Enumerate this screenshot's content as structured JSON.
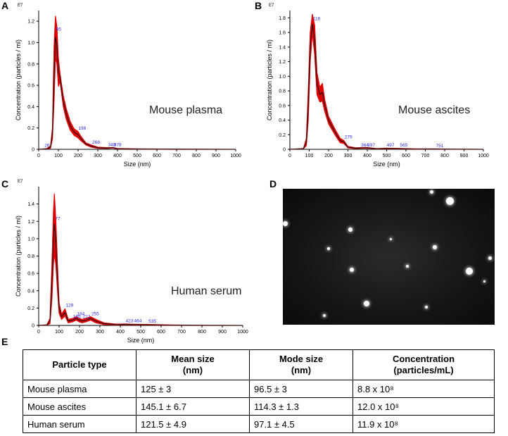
{
  "panels": [
    {
      "letter": "A"
    },
    {
      "letter": "B"
    },
    {
      "letter": "C"
    },
    {
      "letter": "D"
    },
    {
      "letter": "E"
    }
  ],
  "chart_data": [
    {
      "type": "line",
      "panel": "A",
      "sample_label": "Mouse plasma",
      "xlabel": "Size (nm)",
      "ylabel": "Concentration (particles / ml)",
      "y_exponent_label": "E7",
      "xlim": [
        0,
        1000
      ],
      "ylim": [
        0,
        1.3
      ],
      "x_ticks": [
        0,
        100,
        200,
        300,
        400,
        500,
        600,
        700,
        800,
        900,
        1000
      ],
      "y_ticks": [
        0,
        0.2,
        0.4,
        0.6,
        0.8,
        1.0,
        1.2
      ],
      "y_tick_labels": [
        "0",
        "0.2",
        "0.4",
        "0.6",
        "0.8",
        "1.0",
        "1.2"
      ],
      "series": [
        {
          "name": "mean",
          "x": [
            0,
            40,
            60,
            70,
            78,
            85,
            92,
            100,
            108,
            115,
            125,
            140,
            160,
            180,
            198,
            215,
            240,
            268,
            300,
            348,
            378,
            400,
            500,
            700,
            1000
          ],
          "values": [
            0,
            0.005,
            0.02,
            0.15,
            0.7,
            1.05,
            0.98,
            0.72,
            0.68,
            0.58,
            0.45,
            0.33,
            0.22,
            0.16,
            0.14,
            0.1,
            0.05,
            0.03,
            0.015,
            0.012,
            0.015,
            0.005,
            0.003,
            0.001,
            0
          ]
        },
        {
          "name": "upper",
          "x": [
            0,
            40,
            60,
            70,
            78,
            85,
            92,
            100,
            108,
            115,
            125,
            140,
            160,
            180,
            198,
            215,
            240,
            268,
            300,
            348,
            378,
            400,
            500,
            700,
            1000
          ],
          "values": [
            0,
            0.006,
            0.03,
            0.2,
            0.95,
            1.25,
            1.15,
            0.85,
            0.72,
            0.62,
            0.5,
            0.38,
            0.26,
            0.19,
            0.17,
            0.12,
            0.06,
            0.04,
            0.02,
            0.016,
            0.018,
            0.007,
            0.004,
            0.002,
            0
          ]
        }
      ],
      "peak_labels": [
        {
          "x": 26,
          "y": 0.01,
          "label": "26"
        },
        {
          "x": 85,
          "y": 1.1,
          "label": "85"
        },
        {
          "x": 198,
          "y": 0.17,
          "label": "198"
        },
        {
          "x": 268,
          "y": 0.04,
          "label": "268"
        },
        {
          "x": 348,
          "y": 0.015,
          "label": "348"
        },
        {
          "x": 378,
          "y": 0.015,
          "label": "378"
        }
      ]
    },
    {
      "type": "line",
      "panel": "B",
      "sample_label": "Mouse ascites",
      "xlabel": "Size (nm)",
      "ylabel": "Concentration (particles / ml)",
      "y_exponent_label": "E7",
      "xlim": [
        0,
        1000
      ],
      "ylim": [
        0,
        1.9
      ],
      "x_ticks": [
        0,
        100,
        200,
        300,
        400,
        500,
        600,
        700,
        800,
        900,
        1000
      ],
      "y_ticks": [
        0,
        0.2,
        0.4,
        0.6,
        0.8,
        1.0,
        1.2,
        1.4,
        1.6,
        1.8
      ],
      "y_tick_labels": [
        "0",
        "0.2",
        "0.4",
        "0.6",
        "0.8",
        "1.0",
        "1.2",
        "1.4",
        "1.6",
        "1.8"
      ],
      "series": [
        {
          "name": "mean",
          "x": [
            0,
            70,
            85,
            95,
            105,
            116,
            128,
            140,
            155,
            168,
            180,
            200,
            230,
            260,
            279,
            300,
            340,
            364,
            397,
            450,
            497,
            565,
            650,
            751,
            850,
            1000
          ],
          "values": [
            0,
            0.01,
            0.1,
            0.6,
            1.4,
            1.72,
            1.5,
            0.9,
            0.75,
            0.78,
            0.6,
            0.4,
            0.25,
            0.12,
            0.1,
            0.03,
            0.015,
            0.018,
            0.02,
            0.008,
            0.012,
            0.01,
            0.004,
            0.005,
            0.002,
            0
          ]
        },
        {
          "name": "upper",
          "x": [
            0,
            70,
            85,
            95,
            105,
            116,
            128,
            140,
            155,
            168,
            180,
            200,
            230,
            260,
            279,
            300,
            340,
            364,
            397,
            450,
            497,
            565,
            650,
            751,
            850,
            1000
          ],
          "values": [
            0,
            0.012,
            0.15,
            0.8,
            1.6,
            1.85,
            1.7,
            1.05,
            0.85,
            0.9,
            0.68,
            0.45,
            0.29,
            0.15,
            0.12,
            0.04,
            0.02,
            0.023,
            0.025,
            0.01,
            0.015,
            0.013,
            0.006,
            0.007,
            0.003,
            0
          ]
        }
      ],
      "peak_labels": [
        {
          "x": 116,
          "y": 1.75,
          "label": "116"
        },
        {
          "x": 279,
          "y": 0.13,
          "label": "279"
        },
        {
          "x": 364,
          "y": 0.02,
          "label": "364"
        },
        {
          "x": 397,
          "y": 0.02,
          "label": "397"
        },
        {
          "x": 497,
          "y": 0.02,
          "label": "497"
        },
        {
          "x": 565,
          "y": 0.02,
          "label": "565"
        },
        {
          "x": 751,
          "y": 0.01,
          "label": "751"
        }
      ]
    },
    {
      "type": "line",
      "panel": "C",
      "sample_label": "Human serum",
      "xlabel": "Size (nm)",
      "ylabel": "Concentration (particles / ml)",
      "y_exponent_label": "E7",
      "xlim": [
        0,
        1000
      ],
      "ylim": [
        0,
        1.6
      ],
      "x_ticks": [
        0,
        100,
        200,
        300,
        400,
        500,
        600,
        700,
        800,
        900,
        1000
      ],
      "y_ticks": [
        0,
        0.2,
        0.4,
        0.6,
        0.8,
        1.0,
        1.2,
        1.4
      ],
      "y_tick_labels": [
        "0",
        "0.2",
        "0.4",
        "0.6",
        "0.8",
        "1.0",
        "1.2",
        "1.4"
      ],
      "series": [
        {
          "name": "mean",
          "x": [
            0,
            40,
            55,
            65,
            72,
            77,
            84,
            92,
            100,
            112,
            129,
            145,
            165,
            184,
            200,
            212,
            230,
            255,
            280,
            320,
            380,
            423,
            464,
            535,
            650,
            800,
            1000
          ],
          "values": [
            0,
            0.005,
            0.05,
            0.5,
            1.0,
            1.17,
            0.95,
            0.55,
            0.2,
            0.1,
            0.15,
            0.05,
            0.06,
            0.08,
            0.06,
            0.05,
            0.06,
            0.08,
            0.05,
            0.02,
            0.01,
            0.012,
            0.01,
            0.008,
            0.003,
            0.001,
            0
          ]
        },
        {
          "name": "upper",
          "x": [
            0,
            40,
            55,
            65,
            72,
            77,
            84,
            92,
            100,
            112,
            129,
            145,
            165,
            184,
            200,
            212,
            230,
            255,
            280,
            320,
            380,
            423,
            464,
            535,
            650,
            800,
            1000
          ],
          "values": [
            0,
            0.007,
            0.08,
            0.7,
            1.3,
            1.52,
            1.2,
            0.7,
            0.26,
            0.13,
            0.19,
            0.07,
            0.08,
            0.1,
            0.08,
            0.07,
            0.08,
            0.1,
            0.07,
            0.03,
            0.015,
            0.016,
            0.014,
            0.011,
            0.005,
            0.002,
            0
          ]
        }
      ],
      "peak_labels": [
        {
          "x": 77,
          "y": 1.2,
          "label": "77"
        },
        {
          "x": 129,
          "y": 0.2,
          "label": "129"
        },
        {
          "x": 165,
          "y": 0.07,
          "label": "165"
        },
        {
          "x": 184,
          "y": 0.1,
          "label": "184"
        },
        {
          "x": 212,
          "y": 0.07,
          "label": "212"
        },
        {
          "x": 255,
          "y": 0.1,
          "label": "255"
        },
        {
          "x": 423,
          "y": 0.02,
          "label": "423"
        },
        {
          "x": 464,
          "y": 0.02,
          "label": "464"
        },
        {
          "x": 535,
          "y": 0.015,
          "label": "535"
        }
      ]
    }
  ],
  "table": {
    "headers": [
      [
        "Particle type"
      ],
      [
        "Mean size",
        "(nm)"
      ],
      [
        "Mode size",
        "(nm)"
      ],
      [
        "Concentration",
        "(particles/mL)"
      ]
    ],
    "rows": [
      [
        "Mouse plasma",
        "125 ± 3",
        "96.5 ± 3",
        "8.8 x 10⁸"
      ],
      [
        "Mouse ascites",
        "145.1 ± 6.7",
        "114.3 ± 1.3",
        "12.0 x 10⁸"
      ],
      [
        "Human serum",
        "121.5 ± 4.9",
        "97.1 ± 4.5",
        "11.9 x 10⁸"
      ]
    ]
  },
  "colors": {
    "band": "#e00000",
    "mean_line": "#111111",
    "peak_label": "#2a2af0",
    "axis": "#000000"
  }
}
